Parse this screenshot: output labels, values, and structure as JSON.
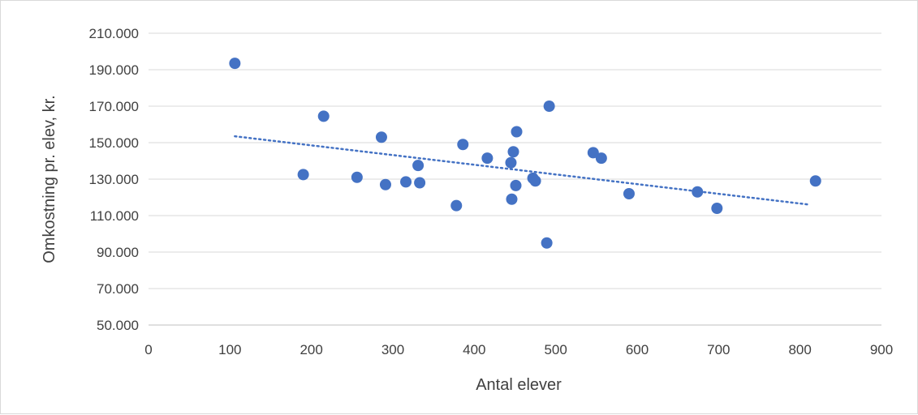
{
  "chart_data": {
    "type": "scatter",
    "title": "",
    "xlabel": "Antal elever",
    "ylabel": "Omkostning pr. elev, kr.",
    "xlim": [
      0,
      900
    ],
    "ylim": [
      50000,
      210000
    ],
    "x_ticks": [
      {
        "value": 0,
        "label": "0"
      },
      {
        "value": 100,
        "label": "100"
      },
      {
        "value": 200,
        "label": "200"
      },
      {
        "value": 300,
        "label": "300"
      },
      {
        "value": 400,
        "label": "400"
      },
      {
        "value": 500,
        "label": "500"
      },
      {
        "value": 600,
        "label": "600"
      },
      {
        "value": 700,
        "label": "700"
      },
      {
        "value": 800,
        "label": "800"
      },
      {
        "value": 900,
        "label": "900"
      }
    ],
    "y_ticks": [
      {
        "value": 50000,
        "label": "50.000"
      },
      {
        "value": 70000,
        "label": "70.000"
      },
      {
        "value": 90000,
        "label": "90.000"
      },
      {
        "value": 110000,
        "label": "110.000"
      },
      {
        "value": 130000,
        "label": "130.000"
      },
      {
        "value": 150000,
        "label": "150.000"
      },
      {
        "value": 170000,
        "label": "170.000"
      },
      {
        "value": 190000,
        "label": "190.000"
      },
      {
        "value": 210000,
        "label": "210.000"
      }
    ],
    "grid": "horizontal",
    "legend": "none",
    "marker_color": "#4472c4",
    "trendline": {
      "type": "linear",
      "style": "dotted",
      "color": "#4472c4",
      "x": [
        106,
        812
      ],
      "y": [
        153500,
        116000
      ]
    },
    "points": [
      {
        "x": 106,
        "y": 193500
      },
      {
        "x": 190,
        "y": 132500
      },
      {
        "x": 215,
        "y": 164500
      },
      {
        "x": 256,
        "y": 131000
      },
      {
        "x": 286,
        "y": 153000
      },
      {
        "x": 291,
        "y": 127000
      },
      {
        "x": 316,
        "y": 128500
      },
      {
        "x": 331,
        "y": 137500
      },
      {
        "x": 333,
        "y": 128000
      },
      {
        "x": 378,
        "y": 115500
      },
      {
        "x": 386,
        "y": 149000
      },
      {
        "x": 416,
        "y": 141500
      },
      {
        "x": 445,
        "y": 139000
      },
      {
        "x": 446,
        "y": 119000
      },
      {
        "x": 448,
        "y": 145000
      },
      {
        "x": 451,
        "y": 126500
      },
      {
        "x": 452,
        "y": 156000
      },
      {
        "x": 472,
        "y": 130500
      },
      {
        "x": 475,
        "y": 129000
      },
      {
        "x": 489,
        "y": 95000
      },
      {
        "x": 492,
        "y": 170000
      },
      {
        "x": 546,
        "y": 144500
      },
      {
        "x": 556,
        "y": 141500
      },
      {
        "x": 590,
        "y": 122000
      },
      {
        "x": 674,
        "y": 123000
      },
      {
        "x": 698,
        "y": 114000
      },
      {
        "x": 819,
        "y": 129000
      }
    ]
  }
}
